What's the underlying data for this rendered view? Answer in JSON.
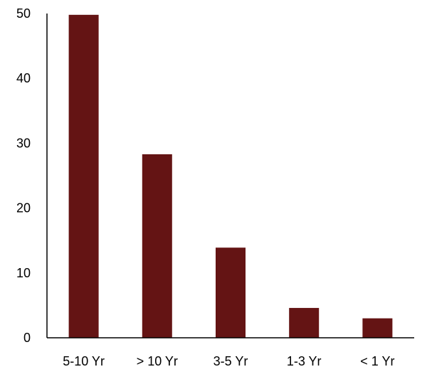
{
  "chart_data": {
    "type": "bar",
    "categories": [
      "5-10 Yr",
      "> 10 Yr",
      "3-5 Yr",
      "1-3 Yr",
      "< 1 Yr"
    ],
    "values": [
      49.8,
      28.3,
      13.9,
      4.6,
      3.0
    ],
    "ylim": [
      0,
      50
    ],
    "yticks": [
      "0",
      "10",
      "20",
      "30",
      "40",
      "50"
    ],
    "grid": false,
    "legend": "none",
    "bar_color": "#641414"
  }
}
